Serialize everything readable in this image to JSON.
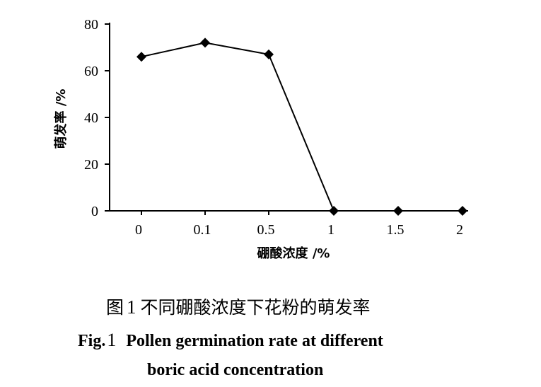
{
  "chart_data": {
    "type": "line",
    "categories": [
      "0",
      "0.1",
      "0.5",
      "1",
      "1.5",
      "2"
    ],
    "series": [
      {
        "values": [
          66,
          72,
          67,
          0,
          0,
          0
        ]
      }
    ],
    "title": "",
    "xlabel": "硼酸浓度 /%",
    "ylabel": "萌发率 /%",
    "ylim": [
      0,
      80
    ],
    "yticks": [
      "0",
      "20",
      "40",
      "60",
      "80"
    ],
    "grid": false,
    "legend": "none"
  },
  "caption": {
    "cn_prefix": "图",
    "number": "1",
    "cn_text": "不同硼酸浓度下花粉的萌发率",
    "en_prefix": "Fig.",
    "en_line1": "Pollen germination rate at different",
    "en_line2": "boric acid concentration"
  }
}
